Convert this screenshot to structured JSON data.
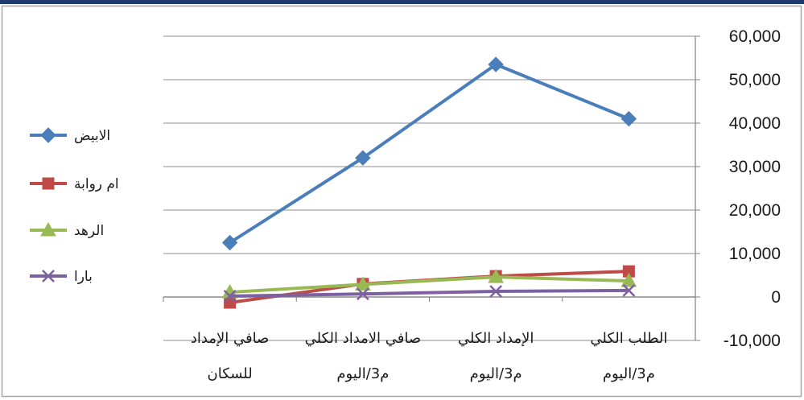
{
  "colors": {
    "top_bar": "#1f3a6e",
    "frame": "#a6a6a6",
    "grid": "#8c8c8c",
    "axis": "#808080"
  },
  "chart_data": {
    "type": "line",
    "categories": [
      [
        "صافي الإمداد",
        "للسكان"
      ],
      [
        "صافي الامداد الكلي",
        "م3/اليوم"
      ],
      [
        "الإمداد الكلي",
        "م3/اليوم"
      ],
      [
        "الطلب الكلي",
        "م3/اليوم"
      ]
    ],
    "series": [
      {
        "name": "الابيض",
        "color": "#4a7ebb",
        "marker": "diamond",
        "values": [
          12500,
          32000,
          53500,
          41000
        ]
      },
      {
        "name": "ام روابة",
        "color": "#be4b48",
        "marker": "square",
        "values": [
          -1300,
          3000,
          4800,
          5900
        ]
      },
      {
        "name": "الرهد",
        "color": "#98b954",
        "marker": "triangle",
        "values": [
          1100,
          2900,
          4600,
          3700
        ]
      },
      {
        "name": "بارا",
        "color": "#7d60a0",
        "marker": "x",
        "values": [
          200,
          700,
          1300,
          1500
        ]
      }
    ],
    "ylim": [
      -10000,
      60000
    ],
    "yticks": [
      60000,
      50000,
      40000,
      30000,
      20000,
      10000,
      0,
      -10000
    ],
    "ytick_labels": [
      "60,000",
      "50,000",
      "40,000",
      "30,000",
      "20,000",
      "10,000",
      "0",
      "-10,000"
    ],
    "y_axis_side": "right",
    "grid": true,
    "legend": "left",
    "title": "",
    "xlabel": "",
    "ylabel": ""
  }
}
